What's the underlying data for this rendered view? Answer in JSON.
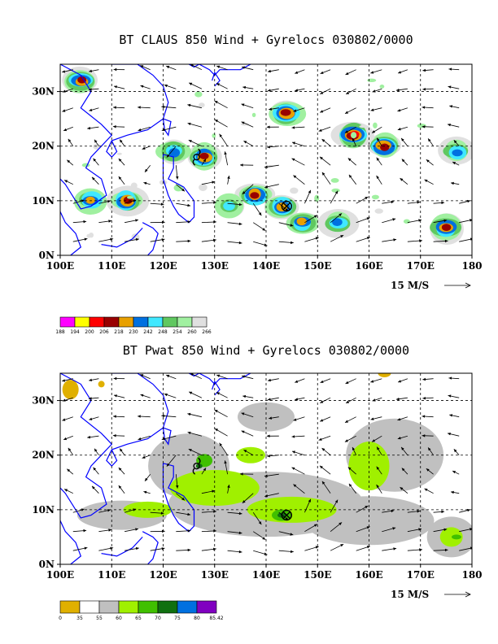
{
  "chart_data": [
    {
      "type": "heatmap",
      "title": "BT CLAUS 850 Wind + Gyrelocs 030802/0000",
      "x_ticks": [
        "100E",
        "110E",
        "120E",
        "130E",
        "140E",
        "150E",
        "160E",
        "170E",
        "180"
      ],
      "x_values": [
        100,
        110,
        120,
        130,
        140,
        150,
        160,
        170,
        180
      ],
      "y_ticks": [
        "0N",
        "10N",
        "20N",
        "30N"
      ],
      "y_values": [
        0,
        10,
        20,
        30
      ],
      "xlim": [
        100,
        180
      ],
      "ylim": [
        0,
        35
      ],
      "grid": true,
      "reference_vector": "15 M/S",
      "colorbar": {
        "labels": [
          "188",
          "194",
          "200",
          "206",
          "218",
          "230",
          "242",
          "248",
          "254",
          "260",
          "266"
        ],
        "colors": [
          "#ff00ff",
          "#ffff00",
          "#ff0000",
          "#990000",
          "#e8a000",
          "#0070e0",
          "#40e8ff",
          "#60c860",
          "#a0f0a0",
          "#e0e0e0"
        ]
      },
      "gyre_locations": [
        {
          "symbol": "tc",
          "lon": 126.5,
          "lat": 18.0
        },
        {
          "symbol": "gyre",
          "lon": 144.0,
          "lat": 9.0
        }
      ],
      "regions": [
        {
          "lon": 104,
          "lat": 32,
          "level": 3
        },
        {
          "lon": 128,
          "lat": 18,
          "level": 3
        },
        {
          "lon": 122,
          "lat": 19,
          "level": 5
        },
        {
          "lon": 113,
          "lat": 10,
          "level": 3
        },
        {
          "lon": 106,
          "lat": 10,
          "level": 4
        },
        {
          "lon": 138,
          "lat": 11,
          "level": 3
        },
        {
          "lon": 143,
          "lat": 9,
          "level": 4
        },
        {
          "lon": 147,
          "lat": 6,
          "level": 4
        },
        {
          "lon": 157,
          "lat": 22,
          "level": 2
        },
        {
          "lon": 163,
          "lat": 20,
          "level": 3
        },
        {
          "lon": 144,
          "lat": 26,
          "level": 3
        },
        {
          "lon": 175,
          "lat": 5,
          "level": 3
        },
        {
          "lon": 177,
          "lat": 19,
          "level": 5
        },
        {
          "lon": 154,
          "lat": 6,
          "level": 5
        },
        {
          "lon": 133,
          "lat": 9,
          "level": 6
        }
      ]
    },
    {
      "type": "heatmap",
      "title": "BT Pwat 850 Wind + Gyrelocs 030802/0000",
      "x_ticks": [
        "100E",
        "110E",
        "120E",
        "130E",
        "140E",
        "150E",
        "160E",
        "170E",
        "180"
      ],
      "x_values": [
        100,
        110,
        120,
        130,
        140,
        150,
        160,
        170,
        180
      ],
      "y_ticks": [
        "0N",
        "10N",
        "20N",
        "30N"
      ],
      "y_values": [
        0,
        10,
        20,
        30
      ],
      "xlim": [
        100,
        180
      ],
      "ylim": [
        0,
        35
      ],
      "grid": true,
      "reference_vector": "15 M/S",
      "colorbar": {
        "labels": [
          "0",
          "35",
          "55",
          "60",
          "65",
          "70",
          "75",
          "80",
          "85.42"
        ],
        "colors": [
          "#e0b000",
          "#ffffff",
          "#c0c0c0",
          "#a0f000",
          "#40c000",
          "#107010",
          "#0070e0",
          "#8000c0"
        ]
      },
      "gyre_locations": [
        {
          "symbol": "tc",
          "lon": 126.5,
          "lat": 18.0
        },
        {
          "symbol": "gyre",
          "lon": 144.0,
          "lat": 9.0
        }
      ]
    }
  ]
}
